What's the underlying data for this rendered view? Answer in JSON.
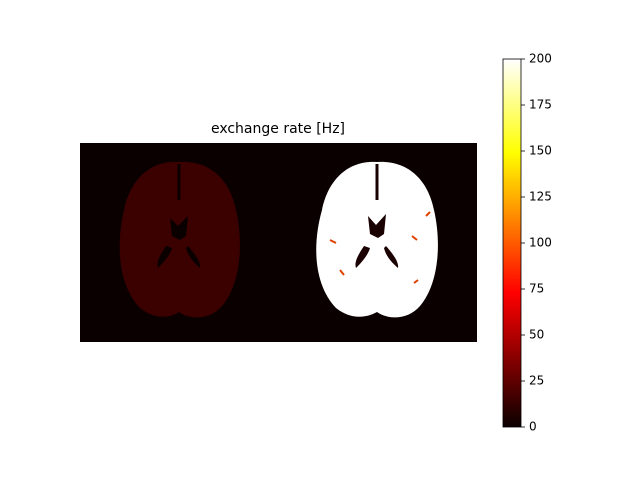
{
  "chart_data": {
    "type": "image",
    "title": "exchange rate [Hz]",
    "colormap": "hot",
    "colorbar": {
      "clim": [
        0,
        200
      ],
      "ticks": [
        0,
        25,
        50,
        75,
        100,
        125,
        150,
        175,
        200
      ]
    }
  }
}
